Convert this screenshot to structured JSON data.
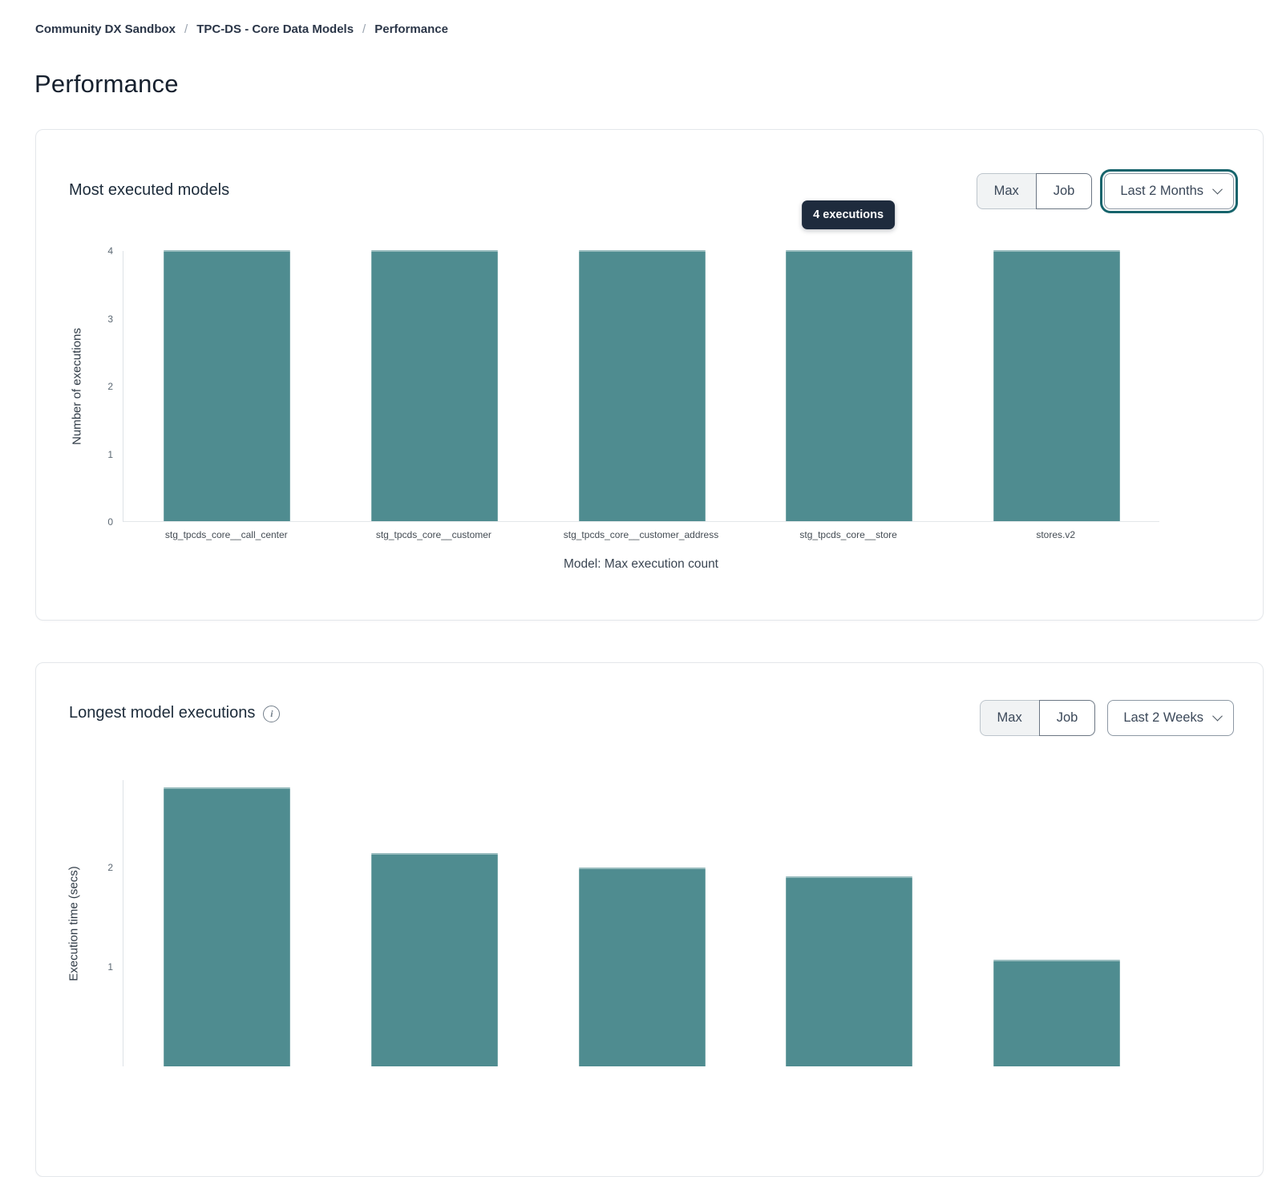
{
  "breadcrumb": {
    "items": [
      "Community DX Sandbox",
      "TPC-DS - Core Data Models",
      "Performance"
    ],
    "separator": "/"
  },
  "page_title": "Performance",
  "icons": {
    "info": "i",
    "chevron": "chevron-down"
  },
  "colors": {
    "bar": "#4f8c90",
    "focus_ring": "#17646c",
    "tooltip_bg": "#1e2b3d"
  },
  "cards": [
    {
      "title": "Most executed models",
      "toggle": [
        "Max",
        "Job"
      ],
      "range_selector": {
        "value": "Last 2 Months"
      },
      "tooltip": {
        "text": "4 executions",
        "bar_index": 3
      },
      "chart_data": {
        "type": "bar",
        "categories": [
          "stg_tpcds_core__call_center",
          "stg_tpcds_core__customer",
          "stg_tpcds_core__customer_address",
          "stg_tpcds_core__store",
          "stores.v2"
        ],
        "values": [
          4,
          4,
          4,
          4,
          4
        ],
        "title": "Most executed models",
        "xlabel": "Model: Max execution count",
        "ylabel": "Number of executions",
        "yticks": [
          0,
          1,
          2,
          3,
          4
        ],
        "ymax": 4,
        "grid": false,
        "legend": false
      }
    },
    {
      "title": "Longest model executions",
      "toggle": [
        "Max",
        "Job"
      ],
      "range_selector": {
        "value": "Last 2 Weeks"
      },
      "chart_data": {
        "type": "bar",
        "categories": [
          "",
          "",
          "",
          "",
          ""
        ],
        "values": [
          2.81,
          2.15,
          2.0,
          1.91,
          1.07
        ],
        "title": "Longest model executions",
        "xlabel": "",
        "ylabel": "Execution time (secs)",
        "yticks": [
          1,
          2
        ],
        "ymax": 2.88,
        "grid": false,
        "legend": false
      }
    }
  ]
}
